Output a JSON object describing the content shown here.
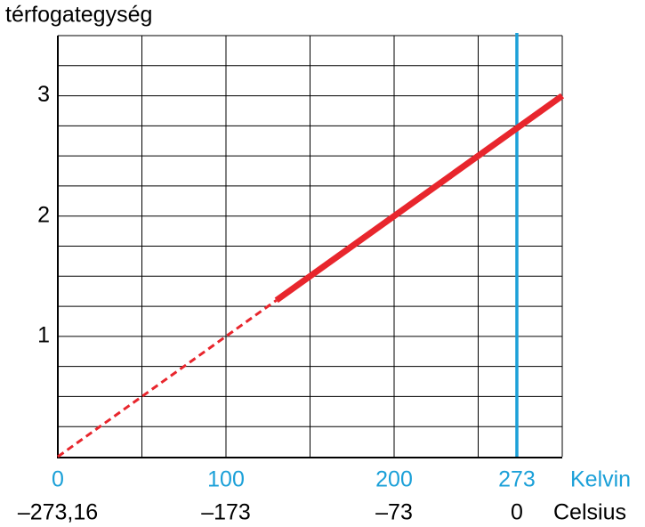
{
  "chart_data": {
    "type": "line",
    "title": "térfogategység",
    "xlim": [
      0,
      300
    ],
    "ylim": [
      0,
      3.5
    ],
    "xticks": [
      0,
      100,
      200,
      273
    ],
    "x_unit": "Kelvin",
    "celsius_ticks": [
      {
        "value": 0,
        "label": "–273,16"
      },
      {
        "value": 100,
        "label": "–173"
      },
      {
        "value": 200,
        "label": "–73"
      },
      {
        "value": 273,
        "label": "0"
      }
    ],
    "celsius_unit": "Celsius",
    "yticks": [
      1,
      2,
      3
    ],
    "xgrid": [
      50,
      100,
      150,
      200,
      250,
      300
    ],
    "ygrid": [
      0.25,
      0.5,
      0.75,
      1,
      1.25,
      1.5,
      1.75,
      2,
      2.25,
      2.5,
      2.75,
      3,
      3.25,
      3.5
    ],
    "grid": true,
    "marker_x": 273,
    "marker_color": "#1ba0d8",
    "series": [
      {
        "color": "#e8262d",
        "line_style": "dashed",
        "x": [
          0,
          130
        ],
        "values": [
          0,
          1.3
        ]
      },
      {
        "color": "#e8262d",
        "line_style": "solid",
        "x": [
          130,
          300
        ],
        "values": [
          1.3,
          3
        ]
      }
    ]
  }
}
